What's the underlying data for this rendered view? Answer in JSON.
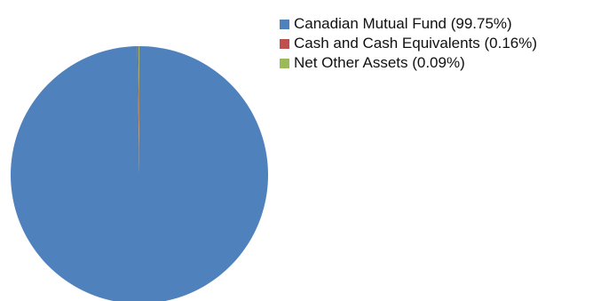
{
  "chart_data": {
    "type": "pie",
    "title": "",
    "legend_position": "top-right",
    "slices": [
      {
        "label": "Canadian Mutual Fund (99.75%)",
        "value": 99.75,
        "color": "#4F81BD"
      },
      {
        "label": "Cash and Cash Equivalents (0.16%)",
        "value": 0.16,
        "color": "#C0504D"
      },
      {
        "label": "Net Other Assets (0.09%)",
        "value": 0.09,
        "color": "#9BBB59"
      }
    ]
  }
}
